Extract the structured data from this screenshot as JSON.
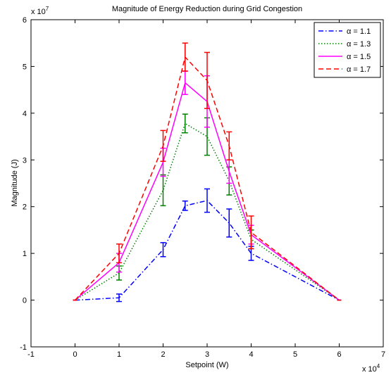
{
  "chart_data": {
    "type": "line",
    "title": "Magnitude of Energy Reduction during Grid Congestion",
    "xlabel": "Setpoint (W)",
    "ylabel": "Magnitude (J)",
    "x_exponent_label": "x 10",
    "x_exponent": "4",
    "y_exponent_label": "x 10",
    "y_exponent": "7",
    "xlim": [
      -1,
      7
    ],
    "ylim": [
      -1,
      6
    ],
    "xticks": [
      -1,
      0,
      1,
      2,
      3,
      4,
      5,
      6,
      7
    ],
    "yticks": [
      -1,
      0,
      1,
      2,
      3,
      4,
      5,
      6
    ],
    "xtick_labels": [
      "-1",
      "0",
      "1",
      "2",
      "3",
      "4",
      "5",
      "6",
      "7"
    ],
    "ytick_labels": [
      "-1",
      "0",
      "1",
      "2",
      "3",
      "4",
      "5",
      "6"
    ],
    "grid": false,
    "legend_position": "top-right",
    "x": [
      0,
      1,
      2,
      2.5,
      3,
      3.5,
      4,
      6
    ],
    "series": [
      {
        "name": "α = 1.1",
        "color": "#0000ff",
        "dash": "dashdot",
        "values": [
          0,
          0.05,
          1.08,
          2.02,
          2.13,
          1.65,
          1.0,
          0
        ],
        "error": [
          0,
          0.08,
          0.15,
          0.1,
          0.25,
          0.3,
          0.15,
          0
        ]
      },
      {
        "name": "α = 1.3",
        "color": "#008000",
        "dash": "dotted",
        "values": [
          0,
          0.58,
          2.35,
          3.78,
          3.5,
          2.55,
          1.3,
          0
        ],
        "error": [
          0,
          0.15,
          0.33,
          0.2,
          0.4,
          0.3,
          0.2,
          0
        ]
      },
      {
        "name": "α = 1.5",
        "color": "#ff00ff",
        "dash": "solid",
        "values": [
          0,
          0.8,
          2.95,
          4.65,
          4.25,
          2.75,
          1.4,
          0
        ],
        "error": [
          0,
          0.2,
          0.3,
          0.25,
          0.55,
          0.25,
          0.2,
          0
        ]
      },
      {
        "name": "α = 1.7",
        "color": "#ff0000",
        "dash": "dashed",
        "values": [
          0,
          1.0,
          3.3,
          5.2,
          4.7,
          3.3,
          1.45,
          0
        ],
        "error": [
          0,
          0.2,
          0.33,
          0.3,
          0.6,
          0.3,
          0.35,
          0
        ]
      }
    ]
  }
}
